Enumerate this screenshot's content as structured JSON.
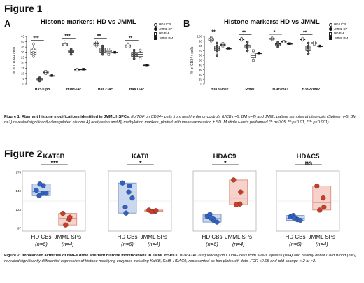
{
  "figure1": {
    "heading": "Figure 1",
    "panel_a": {
      "letter": "A",
      "title": "Histone markers: HD vs JMML",
      "ylabel": "% of CD34+ cells",
      "yticks": [
        "0",
        "5",
        "10",
        "15",
        "20",
        "25",
        "30",
        "35",
        "40",
        "45"
      ],
      "categories": [
        "H3S10ph",
        "H3K56ac",
        "H3K23ac",
        "H4K16ac"
      ],
      "sig": [
        "***",
        "***",
        "**",
        "**"
      ]
    },
    "panel_b": {
      "letter": "B",
      "title": "Histone markers: HD vs JMML",
      "ylabel": "% of CD34+ cells",
      "yticks": [
        "0",
        "10",
        "20",
        "30",
        "40",
        "50",
        "60",
        "70",
        "80",
        "90",
        "100"
      ],
      "categories": [
        "H3K36me2",
        "Rme1",
        "H3K9me1",
        "H3K27me2"
      ],
      "sig": [
        "**",
        "**",
        "*",
        "**"
      ]
    },
    "legend": [
      "HD UCB",
      "JMML SP",
      "HD BM",
      "JMML BM"
    ],
    "caption_bold": "Figure 1: Aberrant histone modifications identified in JMML HSPCs.",
    "caption_text": " EpiTOF on CD34+ cells from healthy donor controls (UCB n=5; BM n=2) and JMML patient samples at diagnosis (Spleen n=5; BM n=1) revealed significantly deregulated histone A) acetylation and B) methylation markers, plotted with mean expression ± SD. Multiple t-tests performed (*: p<0.05, **:p<0.01, ***: p<0.001)."
  },
  "figure2": {
    "heading": "Figure 2",
    "charts": [
      {
        "title": "KAT6B",
        "sig": "***",
        "yticks": [
          "175",
          "149",
          "123",
          "97"
        ]
      },
      {
        "title": "KAT8",
        "sig": "*",
        "yticks": [
          "",
          "",
          "",
          ""
        ]
      },
      {
        "title": "HDAC9",
        "sig": "*",
        "yticks": [
          "",
          "",
          "",
          ""
        ]
      },
      {
        "title": "HDAC5",
        "sig": "ns",
        "yticks": [
          "",
          "",
          "",
          ""
        ]
      }
    ],
    "group_labels": [
      "HD CBs",
      "JMML SPs"
    ],
    "group_n": [
      "(n=6)",
      "(n=4)"
    ],
    "caption_bold": "Figure 2: Imbalanced activities of HMEs drive aberrant histone modifications in JMML HSPCs.",
    "caption_text": " Bulk ATAC-sequencing on CD34+ cells from JMML spleens (n=4) and healthy donor Cord Blood (n=6) revealed significantly differential expression of histone modifying enzymes including Kat6B, Kat8, HDAC9, represented as box plots with dots. FDR <0.05 and fold change <-2 or >2."
  },
  "chart_data": [
    {
      "type": "box",
      "title": "Histone markers: HD vs JMML",
      "ylabel": "% of CD34+ cells",
      "ylim": [
        0,
        45
      ],
      "categories": [
        "H3S10ph",
        "H3K56ac",
        "H3K23ac",
        "H4K16ac"
      ],
      "series": [
        {
          "name": "HD UCB",
          "values": [
            [
              28,
              33,
              38,
              30,
              26
            ],
            [
              38,
              36,
              40,
              35,
              37
            ],
            [
              38,
              39,
              37,
              40,
              36
            ],
            [
              36,
              38,
              35,
              33,
              37
            ]
          ]
        },
        {
          "name": "JMML SP",
          "values": [
            [
              4,
              3,
              5,
              6,
              4
            ],
            [
              30,
              32,
              28,
              33,
              31
            ],
            [
              30,
              34,
              28,
              36,
              32
            ],
            [
              30,
              24,
              28,
              26,
              32
            ]
          ]
        },
        {
          "name": "HD BM",
          "values": [
            [
              12,
              10
            ],
            [
              14,
              13
            ],
            [
              33,
              28
            ],
            [
              24,
              32
            ]
          ]
        },
        {
          "name": "JMML BM",
          "values": [
            [
              8
            ],
            [
              14
            ],
            [
              30
            ],
            [
              18
            ]
          ]
        }
      ]
    },
    {
      "type": "box",
      "title": "Histone markers: HD vs JMML",
      "ylabel": "% of CD34+ cells",
      "ylim": [
        0,
        100
      ],
      "categories": [
        "H3K36me2",
        "Rme1",
        "H3K9me1",
        "H3K27me2"
      ],
      "series": [
        {
          "name": "HD UCB",
          "values": [
            [
              95,
              92,
              98,
              90,
              96
            ],
            [
              94,
              96,
              92,
              95,
              93
            ],
            [
              96,
              94,
              93,
              97,
              95
            ],
            [
              94,
              95,
              92,
              96,
              93
            ]
          ]
        },
        {
          "name": "JMML SP",
          "values": [
            [
              80,
              70,
              86,
              60,
              75
            ],
            [
              82,
              76,
              88,
              70,
              80
            ],
            [
              85,
              80,
              88,
              78,
              84
            ],
            [
              80,
              70,
              86,
              64,
              76
            ]
          ]
        },
        {
          "name": "HD BM",
          "values": [
            [
              85,
              80
            ],
            [
              70,
              50
            ],
            [
              90,
              88
            ],
            [
              88,
              84
            ]
          ]
        },
        {
          "name": "JMML BM",
          "values": [
            [
              75
            ],
            [
              65
            ],
            [
              85
            ],
            [
              80
            ]
          ]
        }
      ]
    },
    {
      "type": "box",
      "title": "KAT6B",
      "ylim": [
        97,
        175
      ],
      "series": [
        {
          "name": "HD CBs",
          "values": [
            150,
            146,
            156,
            143,
            158,
            146
          ]
        },
        {
          "name": "JMML SPs",
          "values": [
            120,
            112,
            115,
            105
          ]
        }
      ]
    },
    {
      "type": "box",
      "title": "KAT8",
      "ylim": [
        0,
        10
      ],
      "series": [
        {
          "name": "HD CBs",
          "values": [
            8.0,
            6.5,
            7.5,
            4.0,
            3.0,
            5.5
          ]
        },
        {
          "name": "JMML SPs",
          "values": [
            3.5,
            3.3,
            3.4,
            3.2
          ]
        }
      ]
    },
    {
      "type": "box",
      "title": "HDAC9",
      "ylim": [
        0,
        10
      ],
      "series": [
        {
          "name": "HD CBs",
          "values": [
            2.5,
            2.0,
            1.7,
            2.8,
            2.2,
            1.5
          ]
        },
        {
          "name": "JMML SPs",
          "values": [
            8.5,
            4.5,
            6.5,
            4.4
          ]
        }
      ]
    },
    {
      "type": "box",
      "title": "HDAC5",
      "ylim": [
        0,
        10
      ],
      "series": [
        {
          "name": "HD CBs",
          "values": [
            2.4,
            2.0,
            1.9,
            2.6,
            2.2,
            1.8
          ]
        },
        {
          "name": "JMML SPs",
          "values": [
            7.5,
            5.5,
            4.0,
            3.5
          ]
        }
      ]
    }
  ]
}
